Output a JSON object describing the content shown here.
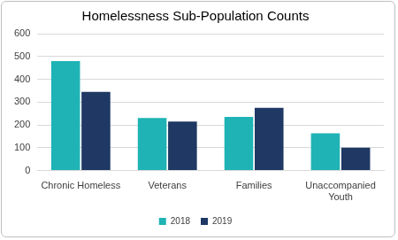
{
  "chart_data": {
    "type": "bar",
    "title": "Homelessness Sub-Population Counts",
    "categories": [
      "Chronic Homeless",
      "Veterans",
      "Families",
      "Unaccompanied Youth"
    ],
    "series": [
      {
        "name": "2018",
        "color": "#1fb3b5",
        "values": [
          480,
          230,
          235,
          163
        ]
      },
      {
        "name": "2019",
        "color": "#1f3864",
        "values": [
          345,
          215,
          275,
          100
        ]
      }
    ],
    "ylim": [
      0,
      600
    ],
    "yticks": [
      0,
      100,
      200,
      300,
      400,
      500,
      600
    ],
    "grid": true,
    "legend": "bottom"
  }
}
